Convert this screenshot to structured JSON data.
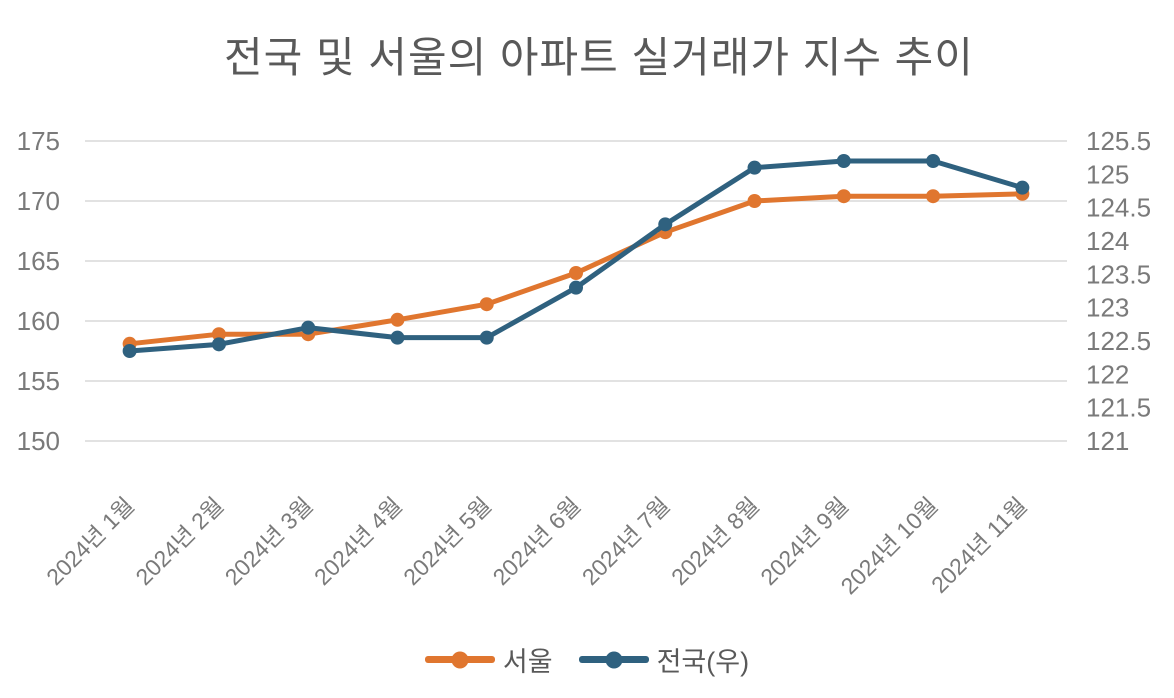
{
  "title": "전국 및 서울의 아파트 실거래가 지수 추이",
  "chart_data": {
    "type": "line",
    "title": "전국 및 서울의 아파트 실거래가 지수 추이",
    "categories": [
      "2024년 1월",
      "2024년 2월",
      "2024년 3월",
      "2024년 4월",
      "2024년 5월",
      "2024년 6월",
      "2024년 7월",
      "2024년 8월",
      "2024년 9월",
      "2024년 10월",
      "2024년 11월"
    ],
    "series": [
      {
        "key": "seoul",
        "name": "서울",
        "axis": "left",
        "color": "#E0762F",
        "values": [
          158.1,
          158.9,
          158.9,
          160.1,
          161.4,
          164.0,
          167.4,
          170.0,
          170.4,
          170.4,
          170.6
        ]
      },
      {
        "key": "nationwide",
        "name": "전국(우)",
        "axis": "right",
        "color": "#2F617F",
        "values": [
          122.35,
          122.45,
          122.7,
          122.55,
          122.55,
          123.3,
          124.25,
          125.1,
          125.2,
          125.2,
          124.8
        ]
      }
    ],
    "left_axis": {
      "min": 150,
      "max": 175,
      "ticks": [
        "175",
        "170",
        "165",
        "160",
        "155",
        "150"
      ]
    },
    "right_axis": {
      "min": 121,
      "max": 125.5,
      "ticks": [
        "125.5",
        "125",
        "124.5",
        "124",
        "123.5",
        "123",
        "122.5",
        "122",
        "121.5",
        "121"
      ]
    },
    "grid": "horizontal",
    "legend_position": "bottom",
    "gridline_color": "#D9D9D9",
    "axis_label_color": "#7a7a7a",
    "title_color": "#595959"
  }
}
